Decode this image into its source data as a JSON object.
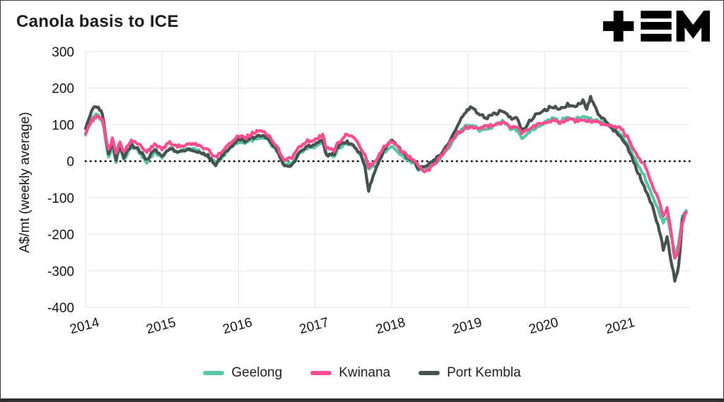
{
  "header": {
    "title": "Canola basis to ICE",
    "logo": "tem-logo"
  },
  "chart_data": {
    "type": "line",
    "title": "Canola basis to ICE",
    "xlabel": "",
    "ylabel": "A$/mt (weekly average)",
    "xlim": [
      2014,
      2021.9
    ],
    "ylim": [
      -400,
      300
    ],
    "x_ticks": [
      2014,
      2015,
      2016,
      2017,
      2018,
      2019,
      2020,
      2021
    ],
    "y_ticks": [
      300,
      200,
      100,
      0,
      -100,
      -200,
      -300,
      -400
    ],
    "grid": true,
    "zero_line_dotted": true,
    "legend_position": "bottom",
    "colors": {
      "grid": "#e5e5e5",
      "zero_line": "#111111",
      "text": "#161616"
    },
    "series": [
      {
        "name": "Geelong",
        "color": "#57c7a0",
        "points": [
          [
            2014.0,
            75
          ],
          [
            2014.08,
            120
          ],
          [
            2014.15,
            130
          ],
          [
            2014.22,
            110
          ],
          [
            2014.3,
            10
          ],
          [
            2014.35,
            40
          ],
          [
            2014.4,
            0
          ],
          [
            2014.45,
            35
          ],
          [
            2014.5,
            5
          ],
          [
            2014.6,
            40
          ],
          [
            2014.7,
            25
          ],
          [
            2014.8,
            -5
          ],
          [
            2014.9,
            25
          ],
          [
            2015.0,
            10
          ],
          [
            2015.1,
            35
          ],
          [
            2015.2,
            25
          ],
          [
            2015.3,
            30
          ],
          [
            2015.4,
            35
          ],
          [
            2015.5,
            25
          ],
          [
            2015.6,
            15
          ],
          [
            2015.7,
            -5
          ],
          [
            2015.8,
            15
          ],
          [
            2015.9,
            35
          ],
          [
            2016.0,
            55
          ],
          [
            2016.1,
            50
          ],
          [
            2016.2,
            60
          ],
          [
            2016.3,
            65
          ],
          [
            2016.4,
            55
          ],
          [
            2016.5,
            25
          ],
          [
            2016.6,
            -10
          ],
          [
            2016.7,
            -5
          ],
          [
            2016.8,
            25
          ],
          [
            2016.9,
            35
          ],
          [
            2017.0,
            40
          ],
          [
            2017.1,
            55
          ],
          [
            2017.15,
            20
          ],
          [
            2017.25,
            15
          ],
          [
            2017.3,
            35
          ],
          [
            2017.4,
            50
          ],
          [
            2017.5,
            45
          ],
          [
            2017.6,
            15
          ],
          [
            2017.65,
            -5
          ],
          [
            2017.7,
            -20
          ],
          [
            2017.8,
            -10
          ],
          [
            2017.9,
            25
          ],
          [
            2018.0,
            40
          ],
          [
            2018.1,
            20
          ],
          [
            2018.2,
            5
          ],
          [
            2018.3,
            -5
          ],
          [
            2018.35,
            -25
          ],
          [
            2018.45,
            -15
          ],
          [
            2018.55,
            -5
          ],
          [
            2018.65,
            10
          ],
          [
            2018.75,
            40
          ],
          [
            2018.85,
            70
          ],
          [
            2018.95,
            95
          ],
          [
            2019.05,
            100
          ],
          [
            2019.15,
            85
          ],
          [
            2019.25,
            90
          ],
          [
            2019.35,
            95
          ],
          [
            2019.45,
            110
          ],
          [
            2019.55,
            90
          ],
          [
            2019.65,
            85
          ],
          [
            2019.7,
            60
          ],
          [
            2019.8,
            80
          ],
          [
            2019.9,
            95
          ],
          [
            2020.0,
            105
          ],
          [
            2020.1,
            115
          ],
          [
            2020.2,
            110
          ],
          [
            2020.3,
            120
          ],
          [
            2020.4,
            115
          ],
          [
            2020.5,
            120
          ],
          [
            2020.6,
            115
          ],
          [
            2020.7,
            110
          ],
          [
            2020.8,
            105
          ],
          [
            2020.9,
            90
          ],
          [
            2021.0,
            70
          ],
          [
            2021.1,
            40
          ],
          [
            2021.2,
            0
          ],
          [
            2021.3,
            -40
          ],
          [
            2021.4,
            -90
          ],
          [
            2021.5,
            -140
          ],
          [
            2021.55,
            -170
          ],
          [
            2021.6,
            -150
          ],
          [
            2021.65,
            -200
          ],
          [
            2021.7,
            -250
          ],
          [
            2021.75,
            -230
          ],
          [
            2021.8,
            -150
          ],
          [
            2021.85,
            -135
          ]
        ]
      },
      {
        "name": "Port Kembla",
        "color": "#47514f",
        "points": [
          [
            2014.0,
            90
          ],
          [
            2014.08,
            140
          ],
          [
            2014.15,
            150
          ],
          [
            2014.22,
            130
          ],
          [
            2014.3,
            15
          ],
          [
            2014.35,
            55
          ],
          [
            2014.4,
            5
          ],
          [
            2014.45,
            45
          ],
          [
            2014.5,
            10
          ],
          [
            2014.6,
            45
          ],
          [
            2014.7,
            30
          ],
          [
            2014.8,
            5
          ],
          [
            2014.9,
            30
          ],
          [
            2015.0,
            15
          ],
          [
            2015.1,
            35
          ],
          [
            2015.2,
            25
          ],
          [
            2015.3,
            30
          ],
          [
            2015.4,
            30
          ],
          [
            2015.5,
            25
          ],
          [
            2015.6,
            15
          ],
          [
            2015.7,
            -10
          ],
          [
            2015.8,
            20
          ],
          [
            2015.9,
            40
          ],
          [
            2016.0,
            60
          ],
          [
            2016.1,
            55
          ],
          [
            2016.2,
            65
          ],
          [
            2016.3,
            70
          ],
          [
            2016.4,
            55
          ],
          [
            2016.5,
            30
          ],
          [
            2016.6,
            -15
          ],
          [
            2016.7,
            -10
          ],
          [
            2016.8,
            25
          ],
          [
            2016.9,
            40
          ],
          [
            2017.0,
            45
          ],
          [
            2017.1,
            55
          ],
          [
            2017.15,
            15
          ],
          [
            2017.25,
            20
          ],
          [
            2017.3,
            40
          ],
          [
            2017.4,
            55
          ],
          [
            2017.5,
            45
          ],
          [
            2017.6,
            15
          ],
          [
            2017.65,
            -10
          ],
          [
            2017.7,
            -80
          ],
          [
            2017.8,
            -15
          ],
          [
            2017.9,
            30
          ],
          [
            2018.0,
            55
          ],
          [
            2018.1,
            35
          ],
          [
            2018.2,
            10
          ],
          [
            2018.3,
            0
          ],
          [
            2018.35,
            -20
          ],
          [
            2018.45,
            -10
          ],
          [
            2018.55,
            0
          ],
          [
            2018.65,
            20
          ],
          [
            2018.75,
            55
          ],
          [
            2018.85,
            95
          ],
          [
            2018.95,
            130
          ],
          [
            2019.05,
            150
          ],
          [
            2019.15,
            125
          ],
          [
            2019.25,
            120
          ],
          [
            2019.35,
            130
          ],
          [
            2019.45,
            140
          ],
          [
            2019.55,
            120
          ],
          [
            2019.65,
            115
          ],
          [
            2019.7,
            80
          ],
          [
            2019.8,
            110
          ],
          [
            2019.9,
            130
          ],
          [
            2020.0,
            140
          ],
          [
            2020.1,
            150
          ],
          [
            2020.2,
            145
          ],
          [
            2020.3,
            155
          ],
          [
            2020.4,
            150
          ],
          [
            2020.5,
            165
          ],
          [
            2020.55,
            145
          ],
          [
            2020.6,
            175
          ],
          [
            2020.65,
            155
          ],
          [
            2020.7,
            130
          ],
          [
            2020.8,
            110
          ],
          [
            2020.9,
            85
          ],
          [
            2021.0,
            65
          ],
          [
            2021.1,
            30
          ],
          [
            2021.2,
            -20
          ],
          [
            2021.3,
            -70
          ],
          [
            2021.4,
            -120
          ],
          [
            2021.5,
            -190
          ],
          [
            2021.55,
            -240
          ],
          [
            2021.6,
            -210
          ],
          [
            2021.65,
            -270
          ],
          [
            2021.7,
            -325
          ],
          [
            2021.75,
            -290
          ],
          [
            2021.8,
            -160
          ],
          [
            2021.85,
            -140
          ]
        ]
      },
      {
        "name": "Kwinana",
        "color": "#fb4e92",
        "points": [
          [
            2014.0,
            80
          ],
          [
            2014.08,
            110
          ],
          [
            2014.15,
            125
          ],
          [
            2014.22,
            115
          ],
          [
            2014.3,
            30
          ],
          [
            2014.35,
            60
          ],
          [
            2014.4,
            20
          ],
          [
            2014.45,
            55
          ],
          [
            2014.5,
            25
          ],
          [
            2014.6,
            55
          ],
          [
            2014.7,
            45
          ],
          [
            2014.8,
            25
          ],
          [
            2014.9,
            45
          ],
          [
            2015.0,
            35
          ],
          [
            2015.1,
            50
          ],
          [
            2015.2,
            40
          ],
          [
            2015.3,
            45
          ],
          [
            2015.4,
            50
          ],
          [
            2015.5,
            40
          ],
          [
            2015.6,
            30
          ],
          [
            2015.7,
            10
          ],
          [
            2015.8,
            30
          ],
          [
            2015.9,
            50
          ],
          [
            2016.0,
            70
          ],
          [
            2016.1,
            65
          ],
          [
            2016.2,
            80
          ],
          [
            2016.3,
            85
          ],
          [
            2016.4,
            70
          ],
          [
            2016.5,
            40
          ],
          [
            2016.6,
            0
          ],
          [
            2016.7,
            10
          ],
          [
            2016.8,
            40
          ],
          [
            2016.9,
            55
          ],
          [
            2017.0,
            60
          ],
          [
            2017.1,
            70
          ],
          [
            2017.15,
            35
          ],
          [
            2017.25,
            30
          ],
          [
            2017.3,
            50
          ],
          [
            2017.4,
            70
          ],
          [
            2017.5,
            65
          ],
          [
            2017.6,
            35
          ],
          [
            2017.65,
            15
          ],
          [
            2017.7,
            -15
          ],
          [
            2017.8,
            5
          ],
          [
            2017.9,
            40
          ],
          [
            2018.0,
            55
          ],
          [
            2018.1,
            35
          ],
          [
            2018.2,
            15
          ],
          [
            2018.3,
            5
          ],
          [
            2018.35,
            -15
          ],
          [
            2018.45,
            -30
          ],
          [
            2018.55,
            -10
          ],
          [
            2018.65,
            15
          ],
          [
            2018.75,
            45
          ],
          [
            2018.85,
            75
          ],
          [
            2018.95,
            90
          ],
          [
            2019.05,
            95
          ],
          [
            2019.15,
            90
          ],
          [
            2019.25,
            95
          ],
          [
            2019.35,
            100
          ],
          [
            2019.45,
            105
          ],
          [
            2019.55,
            95
          ],
          [
            2019.65,
            90
          ],
          [
            2019.7,
            75
          ],
          [
            2019.8,
            90
          ],
          [
            2019.9,
            100
          ],
          [
            2020.0,
            105
          ],
          [
            2020.1,
            110
          ],
          [
            2020.2,
            105
          ],
          [
            2020.3,
            115
          ],
          [
            2020.4,
            110
          ],
          [
            2020.5,
            115
          ],
          [
            2020.6,
            110
          ],
          [
            2020.7,
            105
          ],
          [
            2020.8,
            100
          ],
          [
            2020.9,
            95
          ],
          [
            2021.0,
            90
          ],
          [
            2021.1,
            60
          ],
          [
            2021.2,
            20
          ],
          [
            2021.3,
            -10
          ],
          [
            2021.4,
            -60
          ],
          [
            2021.5,
            -110
          ],
          [
            2021.55,
            -150
          ],
          [
            2021.6,
            -130
          ],
          [
            2021.65,
            -190
          ],
          [
            2021.7,
            -270
          ],
          [
            2021.75,
            -240
          ],
          [
            2021.8,
            -170
          ],
          [
            2021.85,
            -140
          ]
        ]
      }
    ],
    "legend_order": [
      "Geelong",
      "Kwinana",
      "Port Kembla"
    ]
  }
}
